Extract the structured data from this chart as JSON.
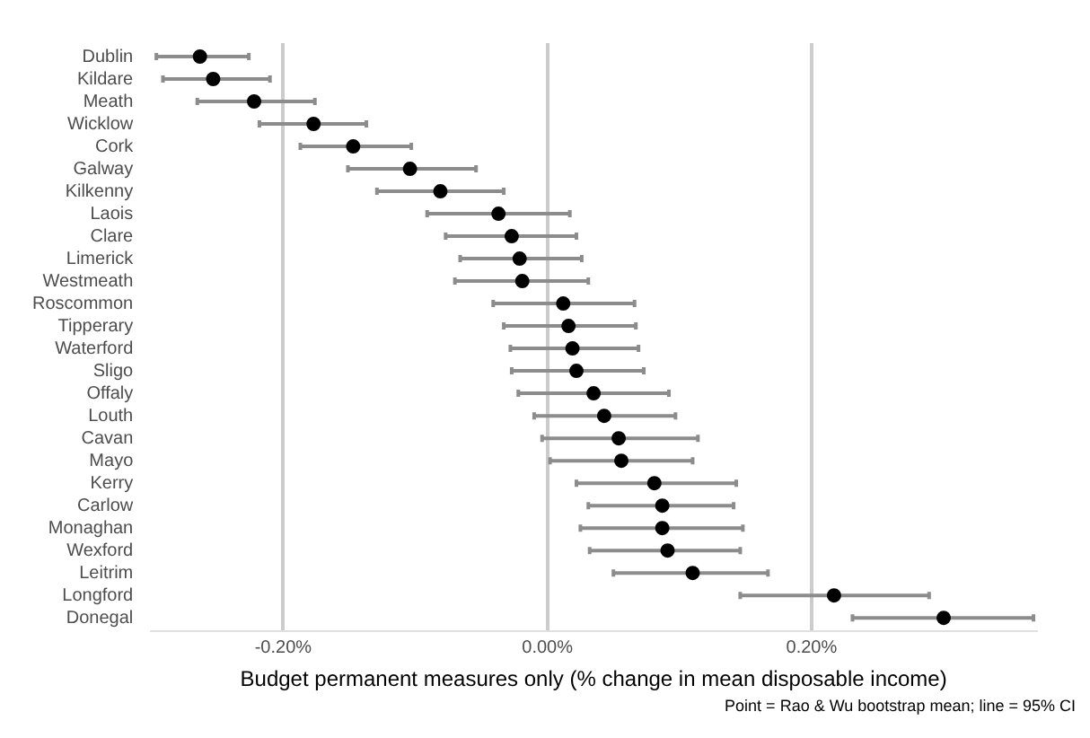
{
  "chart_data": {
    "type": "scatter",
    "orientation": "horizontal",
    "xlabel": "Budget permanent measures only (% change in mean disposable income)",
    "annotations": [
      "Point = Rao & Wu bootstrap mean; line = 95% CI"
    ],
    "categories": [
      "Dublin",
      "Kildare",
      "Meath",
      "Wicklow",
      "Cork",
      "Galway",
      "Kilkenny",
      "Laois",
      "Clare",
      "Limerick",
      "Westmeath",
      "Roscommon",
      "Tipperary",
      "Waterford",
      "Sligo",
      "Offaly",
      "Louth",
      "Cavan",
      "Mayo",
      "Kerry",
      "Carlow",
      "Monaghan",
      "Wexford",
      "Leitrim",
      "Longford",
      "Donegal"
    ],
    "series": [
      {
        "color": "#000000",
        "values": [
          -0.263,
          -0.253,
          -0.222,
          -0.177,
          -0.147,
          -0.104,
          -0.081,
          -0.037,
          -0.027,
          -0.021,
          -0.019,
          0.012,
          0.016,
          0.019,
          0.022,
          0.035,
          0.043,
          0.054,
          0.056,
          0.081,
          0.087,
          0.087,
          0.091,
          0.11,
          0.217,
          0.3
        ],
        "errors": [
          [
            -0.296,
            -0.226
          ],
          [
            -0.291,
            -0.21
          ],
          [
            -0.265,
            -0.176
          ],
          [
            -0.218,
            -0.137
          ],
          [
            -0.187,
            -0.103
          ],
          [
            -0.151,
            -0.054
          ],
          [
            -0.129,
            -0.033
          ],
          [
            -0.091,
            0.017
          ],
          [
            -0.077,
            0.022
          ],
          [
            -0.066,
            0.026
          ],
          [
            -0.07,
            0.031
          ],
          [
            -0.041,
            0.066
          ],
          [
            -0.033,
            0.067
          ],
          [
            -0.028,
            0.069
          ],
          [
            -0.027,
            0.073
          ],
          [
            -0.022,
            0.092
          ],
          [
            -0.01,
            0.097
          ],
          [
            -0.004,
            0.114
          ],
          [
            0.002,
            0.11
          ],
          [
            0.022,
            0.143
          ],
          [
            0.031,
            0.141
          ],
          [
            0.025,
            0.148
          ],
          [
            0.032,
            0.146
          ],
          [
            0.05,
            0.167
          ],
          [
            0.146,
            0.289
          ],
          [
            0.231,
            0.368
          ]
        ]
      }
    ],
    "xlim": [
      -0.3,
      0.37
    ],
    "xticks": [
      {
        "value": -0.2,
        "label": "-0.20%"
      },
      {
        "value": 0,
        "label": "0.00%"
      },
      {
        "value": 0.2,
        "label": "0.20%"
      }
    ],
    "grid": "x",
    "marker": "circle",
    "legend": false
  }
}
